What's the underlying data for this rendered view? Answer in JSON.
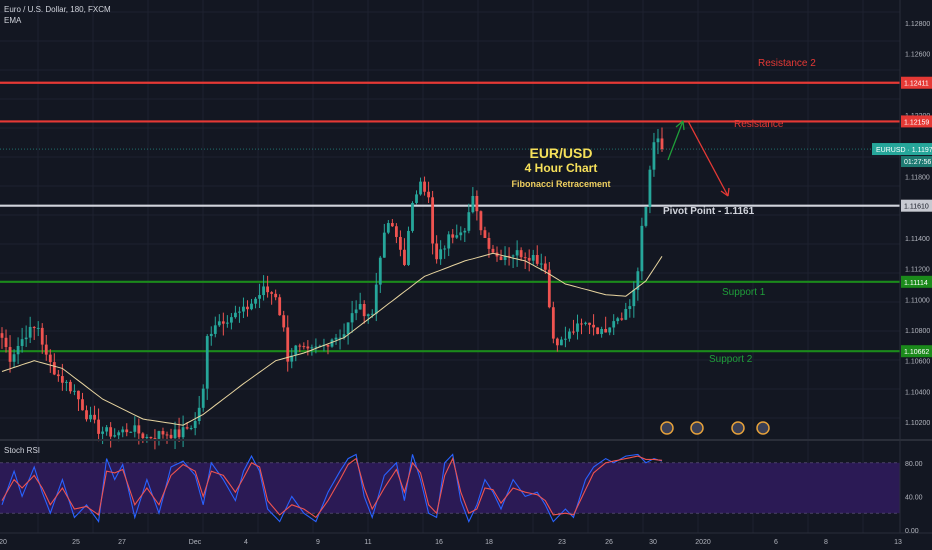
{
  "symbol": {
    "title": "Euro / U.S. Dollar, 180, FXCM",
    "indicator": "EMA",
    "ticker_badge": "EURUSD",
    "last_price": "1.11979",
    "countdown": "01:27:56"
  },
  "annotations": {
    "title_line1": "EUR/USD",
    "title_line2": "4 Hour Chart",
    "title_line3": "Fibonacci Retracement",
    "resistance2": "Resistance 2",
    "resistance": "Resistance",
    "pivot": "Pivot Point - 1.1161",
    "support1": "Support 1",
    "support2": "Support 2"
  },
  "rsi_panel": {
    "title": "Stoch RSI",
    "ticks": [
      "80.00",
      "40.00",
      "0.00"
    ]
  },
  "colors": {
    "background": "#131722",
    "bull": "#26a69a",
    "bear": "#ef5350",
    "resistance": "#e53935",
    "support": "#1b8a1b",
    "pivot": "#d1d4dc",
    "ema": "#e8d5a0",
    "rsi_k": "#2962ff",
    "rsi_d": "#ef5350",
    "rsi_band": "#3a1d6e"
  },
  "chart_data": {
    "type": "candlestick",
    "y_axis_ticks": [
      "1.12800",
      "1.12600",
      "1.12411",
      "1.12200",
      "1.12159",
      "1.11979",
      "1.11800",
      "1.11610",
      "1.11400",
      "1.11200",
      "1.11114",
      "1.11000",
      "1.10800",
      "1.10662",
      "1.10600",
      "1.10400",
      "1.10200"
    ],
    "x_axis_ticks": [
      "20",
      "25",
      "27",
      "Dec",
      "4",
      "9",
      "11",
      "16",
      "18",
      "23",
      "26",
      "30",
      "2020",
      "6",
      "8",
      "13"
    ],
    "ylim": [
      1.1009,
      1.1295
    ],
    "levels": [
      {
        "name": "Resistance 2",
        "price": 1.12411,
        "color": "#e53935"
      },
      {
        "name": "Resistance",
        "price": 1.12159,
        "color": "#e53935"
      },
      {
        "name": "Pivot Point",
        "price": 1.1161,
        "color": "#d1d4dc"
      },
      {
        "name": "Support 1",
        "price": 1.11114,
        "color": "#1b8a1b"
      },
      {
        "name": "Support 2",
        "price": 1.10662,
        "color": "#1b8a1b"
      }
    ],
    "last_price": 1.11979,
    "price_path": [
      [
        0,
        1.1075
      ],
      [
        2,
        1.1062
      ],
      [
        6,
        1.1078
      ],
      [
        9,
        1.1082
      ],
      [
        11,
        1.1062
      ],
      [
        14,
        1.105
      ],
      [
        18,
        1.104
      ],
      [
        21,
        1.1025
      ],
      [
        24,
        1.1015
      ],
      [
        28,
        1.1012
      ],
      [
        32,
        1.1016
      ],
      [
        36,
        1.101
      ],
      [
        40,
        1.1013
      ],
      [
        44,
        1.1012
      ],
      [
        48,
        1.102
      ],
      [
        50,
        1.104
      ],
      [
        51,
        1.1075
      ],
      [
        53,
        1.1085
      ],
      [
        56,
        1.1088
      ],
      [
        60,
        1.1092
      ],
      [
        65,
        1.1106
      ],
      [
        68,
        1.1103
      ],
      [
        70,
        1.108
      ],
      [
        71,
        1.1062
      ],
      [
        73,
        1.1068
      ],
      [
        76,
        1.1065
      ],
      [
        80,
        1.107
      ],
      [
        82,
        1.1075
      ],
      [
        85,
        1.1078
      ],
      [
        88,
        1.1095
      ],
      [
        92,
        1.109
      ],
      [
        94,
        1.113
      ],
      [
        96,
        1.115
      ],
      [
        98,
        1.114
      ],
      [
        100,
        1.1125
      ],
      [
        102,
        1.116
      ],
      [
        104,
        1.118
      ],
      [
        106,
        1.1165
      ],
      [
        107,
        1.1135
      ],
      [
        108,
        1.1125
      ],
      [
        111,
        1.114
      ],
      [
        113,
        1.1145
      ],
      [
        115,
        1.1148
      ],
      [
        117,
        1.1165
      ],
      [
        118,
        1.1155
      ],
      [
        120,
        1.114
      ],
      [
        123,
        1.1128
      ],
      [
        126,
        1.113
      ],
      [
        129,
        1.113
      ],
      [
        132,
        1.1128
      ],
      [
        135,
        1.1122
      ],
      [
        136,
        1.1095
      ],
      [
        137,
        1.1075
      ],
      [
        139,
        1.1072
      ],
      [
        142,
        1.108
      ],
      [
        146,
        1.1085
      ],
      [
        149,
        1.1078
      ],
      [
        152,
        1.1088
      ],
      [
        154,
        1.109
      ],
      [
        156,
        1.1096
      ],
      [
        158,
        1.1118
      ],
      [
        159,
        1.1145
      ],
      [
        160,
        1.116
      ],
      [
        161,
        1.1185
      ],
      [
        162,
        1.1205
      ],
      [
        163,
        1.1202
      ],
      [
        164,
        1.1198
      ]
    ],
    "ema_path": [
      [
        0,
        1.1053
      ],
      [
        8,
        1.106
      ],
      [
        15,
        1.1055
      ],
      [
        25,
        1.1035
      ],
      [
        35,
        1.1022
      ],
      [
        45,
        1.1018
      ],
      [
        50,
        1.1025
      ],
      [
        60,
        1.1045
      ],
      [
        68,
        1.106
      ],
      [
        75,
        1.1065
      ],
      [
        85,
        1.1075
      ],
      [
        95,
        1.1095
      ],
      [
        105,
        1.1115
      ],
      [
        115,
        1.1125
      ],
      [
        122,
        1.113
      ],
      [
        130,
        1.1125
      ],
      [
        135,
        1.1118
      ],
      [
        140,
        1.111
      ],
      [
        150,
        1.1103
      ],
      [
        155,
        1.1102
      ],
      [
        160,
        1.1112
      ],
      [
        164,
        1.1128
      ]
    ],
    "rsi": {
      "ylim": [
        0,
        100
      ],
      "band": [
        20,
        80
      ],
      "k_path": [
        [
          0,
          30
        ],
        [
          3,
          70
        ],
        [
          5,
          40
        ],
        [
          8,
          75
        ],
        [
          10,
          45
        ],
        [
          12,
          20
        ],
        [
          15,
          60
        ],
        [
          18,
          15
        ],
        [
          21,
          30
        ],
        [
          24,
          10
        ],
        [
          26,
          85
        ],
        [
          28,
          60
        ],
        [
          30,
          78
        ],
        [
          33,
          15
        ],
        [
          36,
          60
        ],
        [
          39,
          20
        ],
        [
          42,
          75
        ],
        [
          45,
          82
        ],
        [
          48,
          65
        ],
        [
          50,
          30
        ],
        [
          52,
          80
        ],
        [
          55,
          60
        ],
        [
          58,
          35
        ],
        [
          60,
          70
        ],
        [
          62,
          88
        ],
        [
          64,
          70
        ],
        [
          66,
          25
        ],
        [
          69,
          10
        ],
        [
          72,
          40
        ],
        [
          75,
          20
        ],
        [
          78,
          10
        ],
        [
          81,
          45
        ],
        [
          84,
          70
        ],
        [
          86,
          85
        ],
        [
          88,
          90
        ],
        [
          90,
          40
        ],
        [
          92,
          15
        ],
        [
          95,
          65
        ],
        [
          98,
          80
        ],
        [
          100,
          35
        ],
        [
          102,
          90
        ],
        [
          104,
          60
        ],
        [
          106,
          20
        ],
        [
          108,
          15
        ],
        [
          110,
          80
        ],
        [
          112,
          90
        ],
        [
          114,
          35
        ],
        [
          116,
          10
        ],
        [
          118,
          30
        ],
        [
          120,
          60
        ],
        [
          122,
          45
        ],
        [
          124,
          25
        ],
        [
          127,
          60
        ],
        [
          130,
          40
        ],
        [
          133,
          45
        ],
        [
          135,
          30
        ],
        [
          137,
          10
        ],
        [
          140,
          25
        ],
        [
          142,
          15
        ],
        [
          145,
          60
        ],
        [
          147,
          75
        ],
        [
          150,
          85
        ],
        [
          152,
          80
        ],
        [
          155,
          88
        ],
        [
          158,
          90
        ],
        [
          160,
          80
        ],
        [
          162,
          85
        ],
        [
          164,
          82
        ]
      ],
      "d_path": [
        [
          0,
          35
        ],
        [
          3,
          60
        ],
        [
          5,
          50
        ],
        [
          8,
          65
        ],
        [
          10,
          50
        ],
        [
          12,
          30
        ],
        [
          15,
          50
        ],
        [
          18,
          25
        ],
        [
          21,
          28
        ],
        [
          24,
          18
        ],
        [
          26,
          70
        ],
        [
          28,
          68
        ],
        [
          30,
          72
        ],
        [
          33,
          30
        ],
        [
          36,
          50
        ],
        [
          39,
          30
        ],
        [
          42,
          65
        ],
        [
          45,
          78
        ],
        [
          48,
          70
        ],
        [
          50,
          40
        ],
        [
          52,
          70
        ],
        [
          55,
          65
        ],
        [
          58,
          45
        ],
        [
          60,
          62
        ],
        [
          62,
          80
        ],
        [
          64,
          75
        ],
        [
          66,
          35
        ],
        [
          69,
          18
        ],
        [
          72,
          30
        ],
        [
          75,
          25
        ],
        [
          78,
          15
        ],
        [
          81,
          35
        ],
        [
          84,
          60
        ],
        [
          86,
          78
        ],
        [
          88,
          85
        ],
        [
          90,
          50
        ],
        [
          92,
          25
        ],
        [
          95,
          50
        ],
        [
          98,
          72
        ],
        [
          100,
          45
        ],
        [
          102,
          80
        ],
        [
          104,
          68
        ],
        [
          106,
          30
        ],
        [
          108,
          20
        ],
        [
          110,
          65
        ],
        [
          112,
          85
        ],
        [
          114,
          45
        ],
        [
          116,
          20
        ],
        [
          118,
          25
        ],
        [
          120,
          50
        ],
        [
          122,
          48
        ],
        [
          124,
          32
        ],
        [
          127,
          50
        ],
        [
          130,
          45
        ],
        [
          133,
          42
        ],
        [
          135,
          35
        ],
        [
          137,
          18
        ],
        [
          140,
          20
        ],
        [
          142,
          18
        ],
        [
          145,
          48
        ],
        [
          147,
          68
        ],
        [
          150,
          80
        ],
        [
          152,
          82
        ],
        [
          155,
          85
        ],
        [
          158,
          88
        ],
        [
          160,
          84
        ],
        [
          162,
          84
        ],
        [
          164,
          83
        ]
      ]
    }
  }
}
